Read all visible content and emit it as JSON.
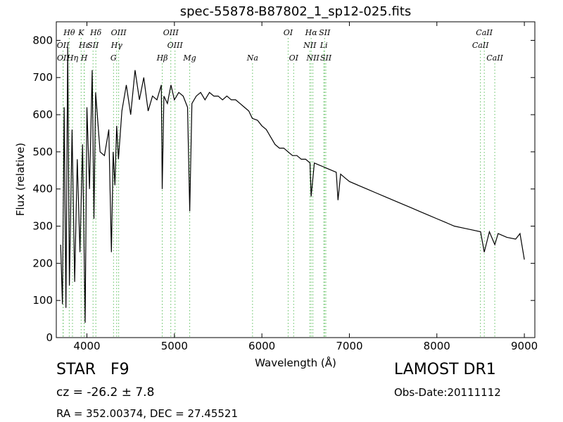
{
  "chart_data": {
    "type": "line",
    "title": "spec-55878-B87802_1_sp12-025.fits",
    "xlabel": "Wavelength (Å)",
    "ylabel": "Flux (relative)",
    "xlim": [
      3650,
      9120
    ],
    "ylim": [
      0,
      850
    ],
    "x_ticks": [
      4000,
      5000,
      6000,
      7000,
      8000,
      9000
    ],
    "y_ticks": [
      0,
      100,
      200,
      300,
      400,
      500,
      600,
      700,
      800
    ],
    "grid": false,
    "line_color": "#000000",
    "marker_color": "#5fbf5f",
    "series": [
      {
        "x": [
          3700,
          3720,
          3740,
          3760,
          3780,
          3800,
          3830,
          3860,
          3890,
          3920,
          3950,
          3980,
          4000,
          4030,
          4060,
          4080,
          4100,
          4150,
          4200,
          4250,
          4280,
          4300,
          4320,
          4340,
          4360,
          4400,
          4450,
          4500,
          4550,
          4600,
          4650,
          4700,
          4750,
          4800,
          4850,
          4861,
          4880,
          4920,
          4960,
          5000,
          5050,
          5100,
          5150,
          5175,
          5200,
          5250,
          5300,
          5350,
          5400,
          5450,
          5500,
          5550,
          5600,
          5650,
          5700,
          5750,
          5800,
          5850,
          5890,
          5950,
          6000,
          6050,
          6100,
          6150,
          6200,
          6250,
          6300,
          6350,
          6400,
          6450,
          6500,
          6550,
          6563,
          6600,
          6650,
          6700,
          6750,
          6800,
          6850,
          6870,
          6900,
          6950,
          7000,
          7100,
          7200,
          7300,
          7400,
          7500,
          7600,
          7700,
          7800,
          7900,
          8000,
          8100,
          8200,
          8300,
          8400,
          8500,
          8542,
          8600,
          8662,
          8700,
          8800,
          8900,
          8950,
          9000
        ],
        "y": [
          250,
          90,
          620,
          80,
          780,
          140,
          560,
          150,
          480,
          230,
          520,
          40,
          620,
          400,
          720,
          320,
          660,
          500,
          490,
          560,
          230,
          500,
          410,
          570,
          480,
          610,
          680,
          600,
          720,
          640,
          700,
          610,
          650,
          640,
          680,
          400,
          650,
          630,
          680,
          640,
          660,
          650,
          620,
          340,
          630,
          650,
          660,
          640,
          660,
          650,
          650,
          640,
          650,
          640,
          640,
          630,
          620,
          610,
          590,
          585,
          570,
          560,
          540,
          520,
          510,
          510,
          500,
          490,
          490,
          480,
          480,
          470,
          380,
          470,
          465,
          460,
          455,
          450,
          445,
          370,
          440,
          430,
          420,
          410,
          400,
          390,
          380,
          370,
          360,
          350,
          340,
          330,
          320,
          310,
          300,
          295,
          290,
          285,
          230,
          285,
          250,
          280,
          270,
          265,
          280,
          210
        ]
      }
    ],
    "lines_top": [
      {
        "label": "Hθ",
        "x": 3798,
        "row": 0
      },
      {
        "label": "K",
        "x": 3934,
        "row": 0
      },
      {
        "label": "Hδ",
        "x": 4102,
        "row": 0
      },
      {
        "label": "OIII",
        "x": 4363,
        "row": 0
      },
      {
        "label": "OIII",
        "x": 4959,
        "row": 0
      },
      {
        "label": "OI",
        "x": 6300,
        "row": 0
      },
      {
        "label": "Hα",
        "x": 6563,
        "row": 0
      },
      {
        "label": "SII",
        "x": 6717,
        "row": 0
      },
      {
        "label": "CaII",
        "x": 8542,
        "row": 0
      },
      {
        "label": "OII",
        "x": 3727,
        "row": 1
      },
      {
        "label": "Hε",
        "x": 3970,
        "row": 1
      },
      {
        "label": "SII",
        "x": 4070,
        "row": 1
      },
      {
        "label": "Hγ",
        "x": 4340,
        "row": 1
      },
      {
        "label": "OIII",
        "x": 5007,
        "row": 1
      },
      {
        "label": "NII",
        "x": 6548,
        "row": 1
      },
      {
        "label": "Li",
        "x": 6708,
        "row": 1
      },
      {
        "label": "CaII",
        "x": 8498,
        "row": 1
      },
      {
        "label": "OII",
        "x": 3729,
        "row": 2
      },
      {
        "label": "Hη",
        "x": 3835,
        "row": 2
      },
      {
        "label": "H",
        "x": 3968,
        "row": 2
      },
      {
        "label": "G",
        "x": 4304,
        "row": 2
      },
      {
        "label": "Hβ",
        "x": 4861,
        "row": 2
      },
      {
        "label": "Mg",
        "x": 5175,
        "row": 2
      },
      {
        "label": "Na",
        "x": 5893,
        "row": 2
      },
      {
        "label": "OI",
        "x": 6363,
        "row": 2
      },
      {
        "label": "NII",
        "x": 6583,
        "row": 2
      },
      {
        "label": "SII",
        "x": 6731,
        "row": 2
      },
      {
        "label": "CaII",
        "x": 8662,
        "row": 2
      }
    ]
  },
  "info": {
    "object_type": "STAR",
    "subclass": "F9",
    "survey": "LAMOST DR1",
    "redshift": "cz = -26.2 ± 7.8",
    "obs_date": "Obs-Date:20111112",
    "coords": "RA = 352.00374, DEC = 27.45521"
  }
}
